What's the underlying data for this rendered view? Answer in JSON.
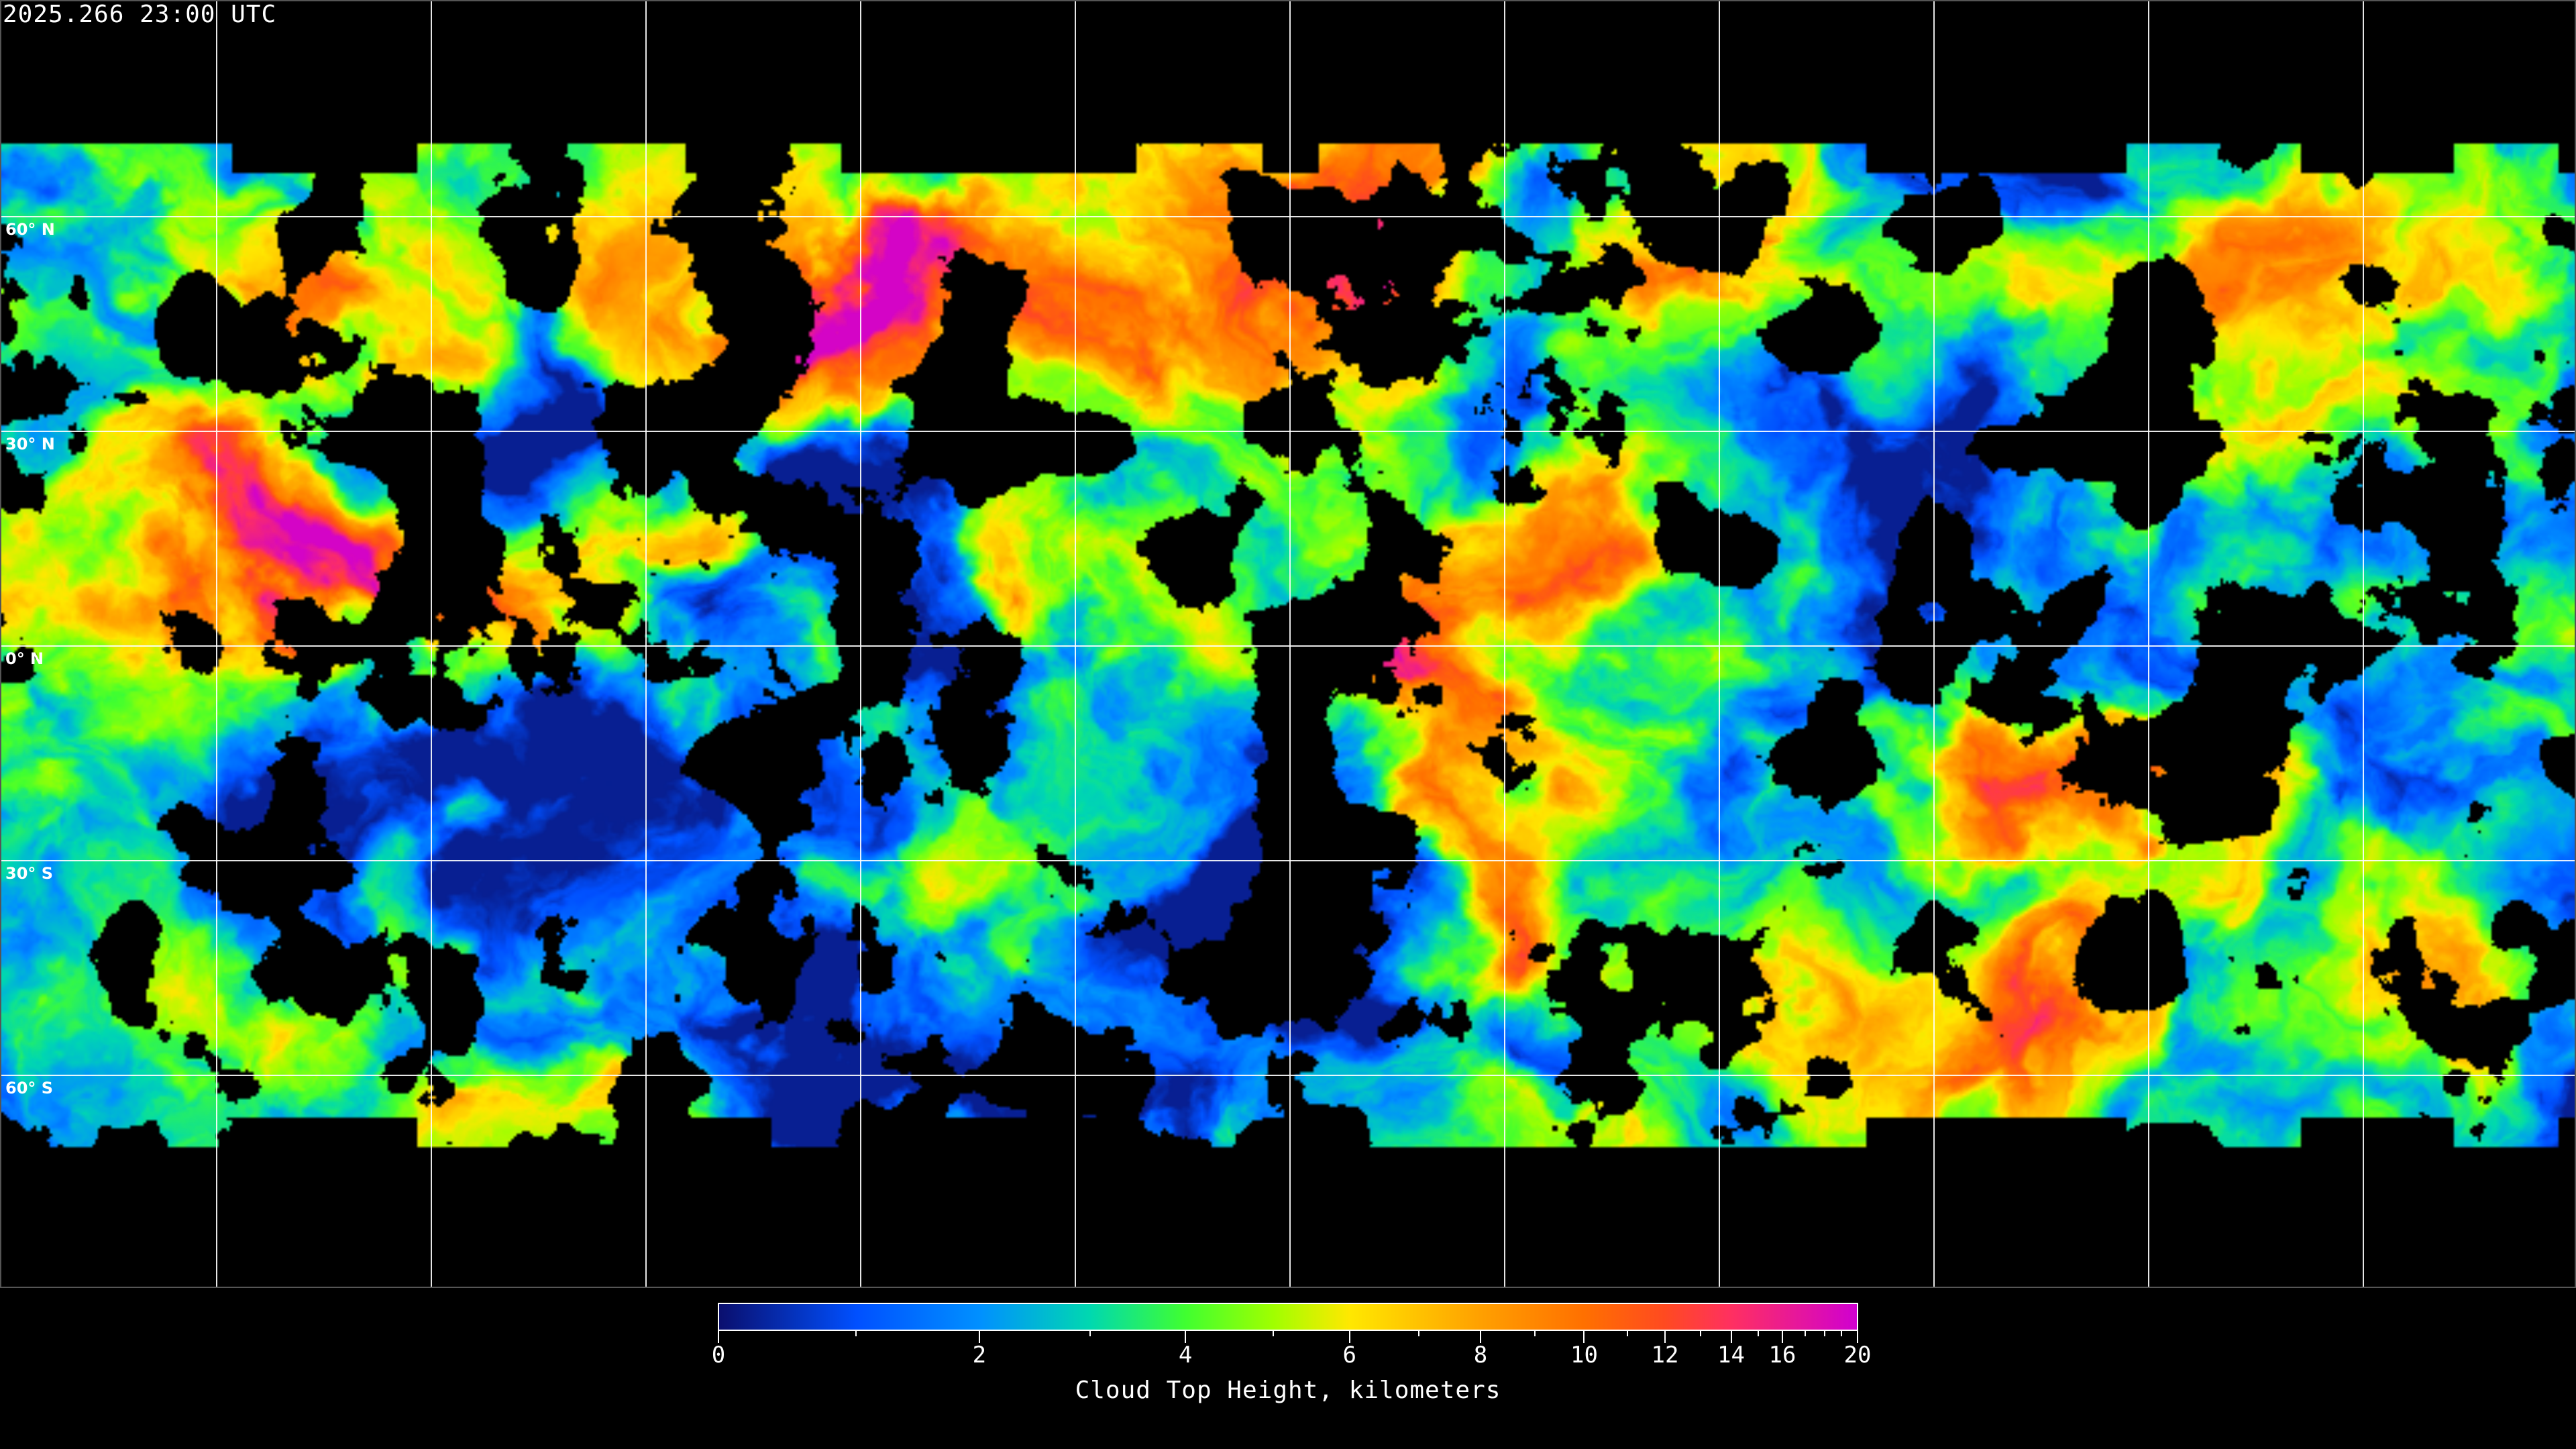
{
  "header": {
    "timestamp": "2025.266 23:00 UTC"
  },
  "map": {
    "projection": "equirectangular",
    "longitude_grid_step_deg": 30,
    "latitude_labels": [
      "60° N",
      "30° N",
      "0° N",
      "30° S",
      "60° S"
    ],
    "latitude_values": [
      60,
      30,
      0,
      -30,
      -60
    ],
    "background_color": "#000000",
    "gridline_color": "#ffffff",
    "coastline_color": "#ffffff"
  },
  "colorbar": {
    "label": "Cloud Top Height, kilometers",
    "min": 0,
    "max": 20,
    "tick_labels": [
      "0",
      "2",
      "4",
      "6",
      "8",
      "10",
      "12",
      "14",
      "16",
      "20"
    ],
    "tick_values": [
      0,
      2,
      4,
      6,
      8,
      10,
      12,
      14,
      16,
      20
    ],
    "minor_tick_values": [
      1,
      3,
      5,
      7,
      9,
      11,
      13,
      15,
      17,
      18,
      19
    ],
    "colormap": [
      {
        "value": 0,
        "color": "#0a0f6e"
      },
      {
        "value": 1,
        "color": "#0050ff"
      },
      {
        "value": 2,
        "color": "#0090ff"
      },
      {
        "value": 3,
        "color": "#00d8b0"
      },
      {
        "value": 4,
        "color": "#40ff30"
      },
      {
        "value": 5,
        "color": "#a0ff00"
      },
      {
        "value": 6,
        "color": "#ffe800"
      },
      {
        "value": 8,
        "color": "#ffa000"
      },
      {
        "value": 10,
        "color": "#ff7000"
      },
      {
        "value": 12,
        "color": "#ff4a20"
      },
      {
        "value": 14,
        "color": "#ff3060"
      },
      {
        "value": 20,
        "color": "#d000d0"
      }
    ]
  }
}
